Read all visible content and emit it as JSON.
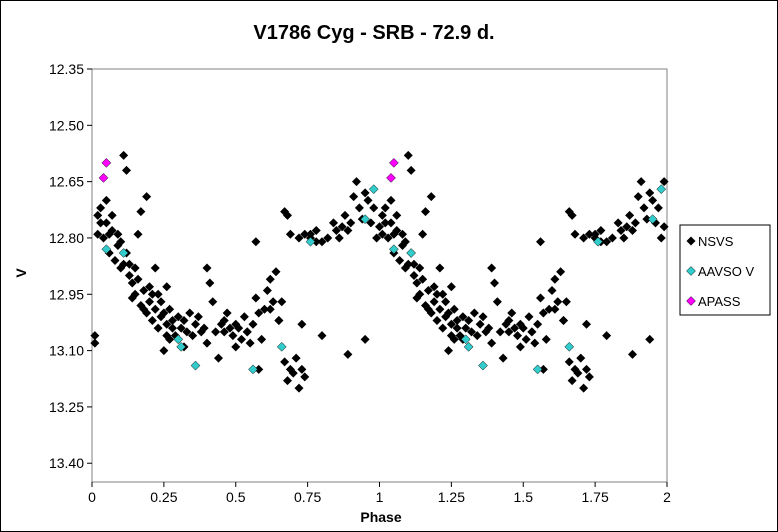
{
  "chart_data": {
    "type": "scatter",
    "title": "V1786 Cyg - SRB - 72.9 d.",
    "xlabel": "Phase",
    "ylabel": "V",
    "xlim": [
      0,
      2
    ],
    "ylim": [
      13.45,
      12.35
    ],
    "y_inverted": true,
    "grid": false,
    "legend_position": "right",
    "x_ticks": [
      "0",
      "0.25",
      "0.5",
      "0.75",
      "1",
      "1.25",
      "1.5",
      "1.75",
      "2"
    ],
    "y_ticks": [
      "12.35",
      "12.50",
      "12.65",
      "12.80",
      "12.95",
      "13.10",
      "13.25",
      "13.40"
    ],
    "series": [
      {
        "name": "NSVS",
        "color": "#000000",
        "marker": "diamond",
        "points": [
          [
            0.01,
            13.06
          ],
          [
            0.01,
            13.08
          ],
          [
            0.02,
            12.74
          ],
          [
            0.02,
            12.79
          ],
          [
            0.03,
            12.76
          ],
          [
            0.03,
            12.72
          ],
          [
            0.04,
            12.8
          ],
          [
            0.05,
            12.76
          ],
          [
            0.05,
            12.7
          ],
          [
            0.06,
            12.79
          ],
          [
            0.06,
            12.84
          ],
          [
            0.07,
            12.74
          ],
          [
            0.07,
            12.78
          ],
          [
            0.08,
            12.86
          ],
          [
            0.09,
            12.79
          ],
          [
            0.09,
            12.82
          ],
          [
            0.1,
            12.88
          ],
          [
            0.1,
            12.81
          ],
          [
            0.11,
            12.87
          ],
          [
            0.11,
            12.58
          ],
          [
            0.12,
            12.62
          ],
          [
            0.12,
            12.84
          ],
          [
            0.13,
            12.9
          ],
          [
            0.13,
            12.87
          ],
          [
            0.14,
            12.92
          ],
          [
            0.14,
            12.96
          ],
          [
            0.15,
            12.88
          ],
          [
            0.15,
            12.95
          ],
          [
            0.16,
            12.79
          ],
          [
            0.16,
            12.91
          ],
          [
            0.17,
            12.98
          ],
          [
            0.17,
            12.73
          ],
          [
            0.18,
            12.94
          ],
          [
            0.18,
            12.99
          ],
          [
            0.19,
            12.69
          ],
          [
            0.19,
            13.0
          ],
          [
            0.2,
            12.97
          ],
          [
            0.2,
            12.93
          ],
          [
            0.21,
            12.95
          ],
          [
            0.21,
            13.02
          ],
          [
            0.22,
            12.99
          ],
          [
            0.22,
            12.88
          ],
          [
            0.23,
            13.04
          ],
          [
            0.23,
            12.95
          ],
          [
            0.24,
            12.97
          ],
          [
            0.24,
            13.01
          ],
          [
            0.25,
            13.0
          ],
          [
            0.25,
            13.1
          ],
          [
            0.26,
            12.93
          ],
          [
            0.26,
            13.03
          ],
          [
            0.27,
            13.07
          ],
          [
            0.27,
            12.99
          ],
          [
            0.28,
            13.02
          ],
          [
            0.28,
            13.04
          ],
          [
            0.29,
            13.06
          ],
          [
            0.3,
            13.01
          ],
          [
            0.3,
            13.07
          ],
          [
            0.31,
            13.04
          ],
          [
            0.32,
            13.09
          ],
          [
            0.32,
            13.02
          ],
          [
            0.33,
            13.05
          ],
          [
            0.34,
            13.0
          ],
          [
            0.35,
            13.06
          ],
          [
            0.36,
            13.03
          ],
          [
            0.37,
            13.01
          ],
          [
            0.38,
            13.05
          ],
          [
            0.39,
            13.04
          ],
          [
            0.4,
            12.88
          ],
          [
            0.4,
            13.08
          ],
          [
            0.41,
            12.92
          ],
          [
            0.42,
            12.97
          ],
          [
            0.43,
            13.05
          ],
          [
            0.44,
            13.12
          ],
          [
            0.45,
            13.03
          ],
          [
            0.46,
            13.02
          ],
          [
            0.47,
            13.0
          ],
          [
            0.48,
            13.04
          ],
          [
            0.49,
            13.06
          ],
          [
            0.5,
            13.03
          ],
          [
            0.5,
            13.09
          ],
          [
            0.51,
            13.04
          ],
          [
            0.52,
            13.07
          ],
          [
            0.53,
            13.01
          ],
          [
            0.54,
            13.05
          ],
          [
            0.55,
            13.08
          ],
          [
            0.56,
            13.03
          ],
          [
            0.57,
            12.96
          ],
          [
            0.58,
            13.0
          ],
          [
            0.59,
            13.07
          ],
          [
            0.6,
            12.99
          ],
          [
            0.61,
            12.94
          ],
          [
            0.62,
            12.91
          ],
          [
            0.63,
            12.97
          ],
          [
            0.64,
            12.89
          ],
          [
            0.65,
            13.02
          ],
          [
            0.66,
            12.97
          ],
          [
            0.67,
            13.13
          ],
          [
            0.68,
            13.18
          ],
          [
            0.69,
            13.15
          ],
          [
            0.7,
            13.16
          ],
          [
            0.71,
            13.12
          ],
          [
            0.72,
            13.2
          ],
          [
            0.73,
            13.15
          ],
          [
            0.74,
            13.17
          ],
          [
            0.67,
            12.73
          ],
          [
            0.68,
            12.74
          ],
          [
            0.69,
            12.79
          ],
          [
            0.72,
            12.8
          ],
          [
            0.74,
            12.79
          ],
          [
            0.76,
            12.8
          ],
          [
            0.78,
            12.78
          ],
          [
            0.8,
            12.81
          ],
          [
            0.82,
            12.8
          ],
          [
            0.84,
            12.76
          ],
          [
            0.85,
            12.78
          ],
          [
            0.86,
            12.8
          ],
          [
            0.87,
            12.77
          ],
          [
            0.88,
            12.74
          ],
          [
            0.89,
            12.78
          ],
          [
            0.9,
            12.76
          ],
          [
            0.91,
            12.69
          ],
          [
            0.92,
            12.65
          ],
          [
            0.93,
            12.72
          ],
          [
            0.94,
            12.75
          ],
          [
            0.95,
            12.68
          ],
          [
            0.96,
            12.7
          ],
          [
            0.97,
            12.76
          ],
          [
            0.98,
            12.72
          ],
          [
            0.99,
            12.8
          ],
          [
            1.0,
            12.77
          ],
          [
            0.8,
            13.06
          ],
          [
            0.89,
            13.11
          ],
          [
            0.95,
            13.07
          ],
          [
            0.57,
            12.81
          ],
          [
            0.58,
            13.15
          ],
          [
            0.46,
            13.05
          ],
          [
            0.76,
            12.79
          ],
          [
            0.78,
            12.81
          ],
          [
            0.26,
            13.06
          ],
          [
            0.54,
            13.05
          ],
          [
            0.65,
            13.02
          ],
          [
            0.62,
            12.99
          ],
          [
            0.73,
            13.03
          ],
          [
            1.01,
            12.74
          ],
          [
            1.01,
            12.79
          ],
          [
            1.02,
            12.76
          ],
          [
            1.02,
            12.72
          ],
          [
            1.03,
            12.8
          ],
          [
            1.04,
            12.76
          ],
          [
            1.04,
            12.7
          ],
          [
            1.05,
            12.79
          ],
          [
            1.05,
            12.84
          ],
          [
            1.06,
            12.74
          ],
          [
            1.06,
            12.78
          ],
          [
            1.07,
            12.86
          ],
          [
            1.08,
            12.79
          ],
          [
            1.08,
            12.82
          ],
          [
            1.09,
            12.88
          ],
          [
            1.09,
            12.81
          ],
          [
            1.1,
            12.87
          ],
          [
            1.1,
            12.58
          ],
          [
            1.11,
            12.62
          ],
          [
            1.11,
            12.84
          ],
          [
            1.12,
            12.9
          ],
          [
            1.12,
            12.87
          ],
          [
            1.13,
            12.92
          ],
          [
            1.13,
            12.96
          ],
          [
            1.14,
            12.88
          ],
          [
            1.14,
            12.95
          ],
          [
            1.15,
            12.79
          ],
          [
            1.15,
            12.91
          ],
          [
            1.16,
            12.98
          ],
          [
            1.16,
            12.73
          ],
          [
            1.17,
            12.94
          ],
          [
            1.17,
            12.99
          ],
          [
            1.18,
            12.69
          ],
          [
            1.18,
            13.0
          ],
          [
            1.19,
            12.97
          ],
          [
            1.19,
            12.93
          ],
          [
            1.2,
            12.95
          ],
          [
            1.2,
            13.02
          ],
          [
            1.21,
            12.99
          ],
          [
            1.21,
            12.88
          ],
          [
            1.22,
            13.04
          ],
          [
            1.22,
            12.95
          ],
          [
            1.23,
            12.97
          ],
          [
            1.23,
            13.01
          ],
          [
            1.24,
            13.0
          ],
          [
            1.24,
            13.1
          ],
          [
            1.25,
            12.93
          ],
          [
            1.25,
            13.03
          ],
          [
            1.26,
            13.07
          ],
          [
            1.26,
            12.99
          ],
          [
            1.27,
            13.02
          ],
          [
            1.27,
            13.04
          ],
          [
            1.28,
            13.06
          ],
          [
            1.29,
            13.01
          ],
          [
            1.29,
            13.07
          ],
          [
            1.3,
            13.04
          ],
          [
            1.31,
            13.09
          ],
          [
            1.31,
            13.02
          ],
          [
            1.32,
            13.05
          ],
          [
            1.33,
            13.0
          ],
          [
            1.34,
            13.06
          ],
          [
            1.35,
            13.03
          ],
          [
            1.36,
            13.01
          ],
          [
            1.37,
            13.05
          ],
          [
            1.38,
            13.04
          ],
          [
            1.39,
            12.88
          ],
          [
            1.39,
            13.08
          ],
          [
            1.4,
            12.92
          ],
          [
            1.41,
            12.97
          ],
          [
            1.42,
            13.05
          ],
          [
            1.43,
            13.12
          ],
          [
            1.44,
            13.03
          ],
          [
            1.45,
            13.02
          ],
          [
            1.46,
            13.0
          ],
          [
            1.47,
            13.04
          ],
          [
            1.48,
            13.06
          ],
          [
            1.49,
            13.03
          ],
          [
            1.49,
            13.09
          ],
          [
            1.5,
            13.04
          ],
          [
            1.51,
            13.07
          ],
          [
            1.52,
            13.01
          ],
          [
            1.53,
            13.05
          ],
          [
            1.54,
            13.08
          ],
          [
            1.55,
            13.03
          ],
          [
            1.56,
            12.96
          ],
          [
            1.57,
            13.0
          ],
          [
            1.58,
            13.07
          ],
          [
            1.59,
            12.99
          ],
          [
            1.6,
            12.94
          ],
          [
            1.61,
            12.91
          ],
          [
            1.62,
            12.97
          ],
          [
            1.63,
            12.89
          ],
          [
            1.64,
            13.02
          ],
          [
            1.65,
            12.97
          ],
          [
            1.66,
            13.13
          ],
          [
            1.67,
            13.18
          ],
          [
            1.68,
            13.15
          ],
          [
            1.69,
            13.16
          ],
          [
            1.7,
            13.12
          ],
          [
            1.71,
            13.2
          ],
          [
            1.72,
            13.15
          ],
          [
            1.73,
            13.17
          ],
          [
            1.66,
            12.73
          ],
          [
            1.67,
            12.74
          ],
          [
            1.68,
            12.79
          ],
          [
            1.71,
            12.8
          ],
          [
            1.73,
            12.79
          ],
          [
            1.75,
            12.8
          ],
          [
            1.77,
            12.78
          ],
          [
            1.79,
            12.81
          ],
          [
            1.81,
            12.8
          ],
          [
            1.83,
            12.76
          ],
          [
            1.84,
            12.78
          ],
          [
            1.85,
            12.8
          ],
          [
            1.86,
            12.77
          ],
          [
            1.87,
            12.74
          ],
          [
            1.88,
            12.78
          ],
          [
            1.89,
            12.76
          ],
          [
            1.9,
            12.69
          ],
          [
            1.91,
            12.65
          ],
          [
            1.92,
            12.72
          ],
          [
            1.93,
            12.75
          ],
          [
            1.94,
            12.68
          ],
          [
            1.95,
            12.7
          ],
          [
            1.96,
            12.76
          ],
          [
            1.97,
            12.72
          ],
          [
            1.98,
            12.8
          ],
          [
            1.99,
            12.77
          ],
          [
            1.79,
            13.06
          ],
          [
            1.88,
            13.11
          ],
          [
            1.94,
            13.07
          ],
          [
            1.56,
            12.81
          ],
          [
            1.57,
            13.15
          ],
          [
            1.45,
            13.05
          ],
          [
            1.75,
            12.79
          ],
          [
            1.77,
            12.81
          ],
          [
            1.25,
            13.06
          ],
          [
            1.53,
            13.05
          ],
          [
            1.64,
            13.02
          ],
          [
            1.61,
            12.99
          ],
          [
            1.72,
            13.03
          ],
          [
            1.99,
            12.65
          ]
        ]
      },
      {
        "name": "AAVSO V",
        "color": "#33cccc",
        "marker": "diamond",
        "points": [
          [
            0.05,
            12.83
          ],
          [
            0.11,
            12.84
          ],
          [
            0.3,
            13.07
          ],
          [
            0.31,
            13.09
          ],
          [
            0.36,
            13.14
          ],
          [
            0.56,
            13.15
          ],
          [
            0.66,
            13.09
          ],
          [
            0.76,
            12.81
          ],
          [
            0.95,
            12.75
          ],
          [
            0.98,
            12.67
          ],
          [
            1.05,
            12.83
          ],
          [
            1.11,
            12.84
          ],
          [
            1.3,
            13.07
          ],
          [
            1.31,
            13.09
          ],
          [
            1.36,
            13.14
          ],
          [
            1.55,
            13.15
          ],
          [
            1.66,
            13.09
          ],
          [
            1.76,
            12.81
          ],
          [
            1.95,
            12.75
          ],
          [
            1.98,
            12.67
          ]
        ]
      },
      {
        "name": "APASS",
        "color": "#ff00ff",
        "marker": "diamond",
        "points": [
          [
            0.04,
            12.64
          ],
          [
            0.05,
            12.6
          ],
          [
            1.04,
            12.64
          ],
          [
            1.05,
            12.6
          ]
        ]
      }
    ]
  }
}
